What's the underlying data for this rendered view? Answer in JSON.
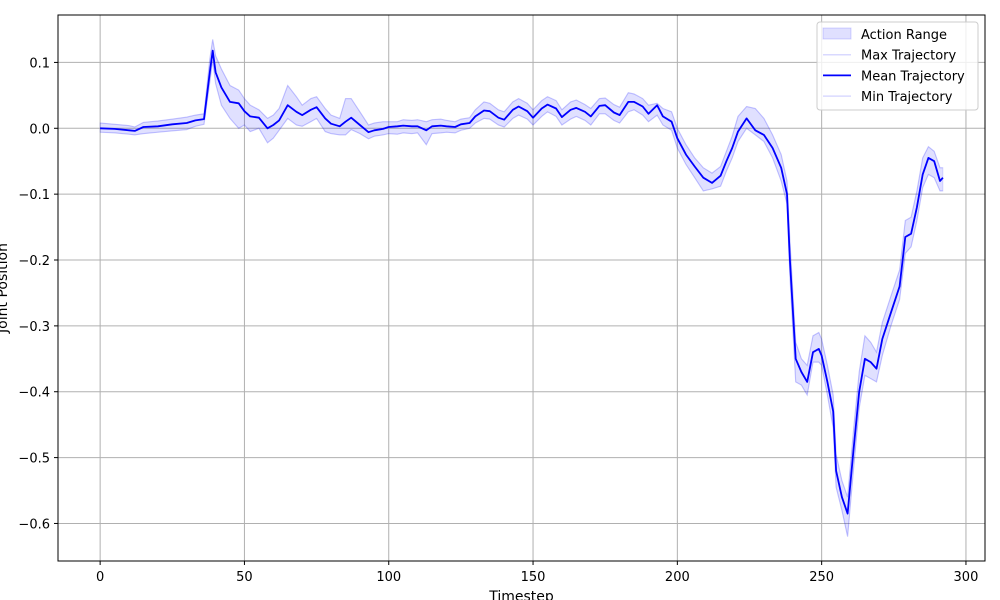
{
  "chart_data": {
    "type": "line",
    "title": "",
    "xlabel": "Timestep",
    "ylabel": "Joint Position",
    "xlim": [
      -14.6,
      306.6
    ],
    "ylim": [
      -0.657,
      0.172
    ],
    "xticks": [
      0,
      50,
      100,
      150,
      200,
      250,
      300
    ],
    "yticks": [
      0.1,
      0.0,
      -0.1,
      -0.2,
      -0.3,
      -0.4,
      -0.5,
      -0.6
    ],
    "xtick_labels": [
      "0",
      "50",
      "100",
      "150",
      "200",
      "250",
      "300"
    ],
    "ytick_labels": [
      "0.1",
      "0.0",
      "−0.1",
      "−0.2",
      "−0.3",
      "−0.4",
      "−0.5",
      "−0.6"
    ],
    "grid": true,
    "legend_position": "top-right",
    "colors": {
      "mean": "#0000ff",
      "band": "#0000ff",
      "max_min": "#9999ff"
    },
    "x": [
      0,
      5,
      10,
      12,
      15,
      20,
      25,
      30,
      33,
      36,
      38,
      39,
      40,
      42,
      45,
      48,
      50,
      52,
      55,
      58,
      60,
      62,
      65,
      68,
      70,
      73,
      75,
      78,
      80,
      83,
      85,
      87,
      90,
      93,
      95,
      98,
      100,
      103,
      105,
      108,
      110,
      113,
      115,
      118,
      120,
      123,
      125,
      128,
      130,
      133,
      135,
      138,
      140,
      143,
      145,
      148,
      150,
      153,
      155,
      158,
      160,
      163,
      165,
      168,
      170,
      173,
      175,
      178,
      180,
      183,
      185,
      188,
      190,
      193,
      195,
      198,
      200,
      203,
      206,
      209,
      212,
      215,
      217,
      219,
      221,
      224,
      227,
      230,
      233,
      236,
      238,
      239,
      241,
      243,
      245,
      247,
      249,
      250,
      252,
      254,
      255,
      257,
      259,
      261,
      263,
      265,
      267,
      269,
      271,
      274,
      277,
      279,
      281,
      283,
      285,
      287,
      289,
      291,
      292
    ],
    "series": [
      {
        "name": "Mean Trajectory",
        "values": [
          0.0,
          -0.001,
          -0.003,
          -0.004,
          0.002,
          0.003,
          0.006,
          0.008,
          0.012,
          0.014,
          0.085,
          0.118,
          0.085,
          0.062,
          0.04,
          0.038,
          0.026,
          0.018,
          0.016,
          0.0,
          0.005,
          0.012,
          0.035,
          0.025,
          0.02,
          0.028,
          0.032,
          0.015,
          0.007,
          0.003,
          0.01,
          0.016,
          0.005,
          -0.006,
          -0.003,
          -0.001,
          0.002,
          0.003,
          0.004,
          0.003,
          0.003,
          -0.003,
          0.003,
          0.004,
          0.003,
          0.002,
          0.006,
          0.008,
          0.018,
          0.027,
          0.026,
          0.016,
          0.013,
          0.028,
          0.033,
          0.026,
          0.016,
          0.03,
          0.036,
          0.03,
          0.017,
          0.028,
          0.031,
          0.025,
          0.018,
          0.034,
          0.035,
          0.024,
          0.02,
          0.04,
          0.04,
          0.033,
          0.022,
          0.035,
          0.018,
          0.01,
          -0.015,
          -0.04,
          -0.058,
          -0.075,
          -0.083,
          -0.072,
          -0.05,
          -0.03,
          -0.005,
          0.015,
          -0.003,
          -0.01,
          -0.03,
          -0.06,
          -0.1,
          -0.2,
          -0.35,
          -0.37,
          -0.385,
          -0.34,
          -0.335,
          -0.345,
          -0.385,
          -0.43,
          -0.52,
          -0.56,
          -0.585,
          -0.49,
          -0.4,
          -0.35,
          -0.355,
          -0.365,
          -0.32,
          -0.28,
          -0.24,
          -0.165,
          -0.16,
          -0.12,
          -0.07,
          -0.045,
          -0.05,
          -0.08,
          -0.075
        ]
      },
      {
        "name": "Max Trajectory",
        "values": [
          0.008,
          0.006,
          0.004,
          0.002,
          0.009,
          0.011,
          0.014,
          0.017,
          0.02,
          0.022,
          0.105,
          0.135,
          0.11,
          0.09,
          0.065,
          0.058,
          0.045,
          0.035,
          0.028,
          0.015,
          0.02,
          0.03,
          0.065,
          0.048,
          0.035,
          0.045,
          0.048,
          0.03,
          0.02,
          0.015,
          0.045,
          0.045,
          0.025,
          0.005,
          0.008,
          0.01,
          0.01,
          0.01,
          0.013,
          0.012,
          0.013,
          0.01,
          0.013,
          0.014,
          0.012,
          0.01,
          0.014,
          0.016,
          0.028,
          0.04,
          0.038,
          0.028,
          0.025,
          0.04,
          0.045,
          0.038,
          0.028,
          0.042,
          0.048,
          0.042,
          0.028,
          0.04,
          0.043,
          0.036,
          0.03,
          0.045,
          0.046,
          0.036,
          0.032,
          0.054,
          0.052,
          0.045,
          0.035,
          0.038,
          0.03,
          0.025,
          0.0,
          -0.025,
          -0.045,
          -0.06,
          -0.068,
          -0.058,
          -0.035,
          -0.012,
          0.018,
          0.033,
          0.03,
          0.015,
          -0.01,
          -0.04,
          -0.08,
          -0.17,
          -0.325,
          -0.35,
          -0.36,
          -0.315,
          -0.31,
          -0.32,
          -0.36,
          -0.405,
          -0.495,
          -0.535,
          -0.56,
          -0.46,
          -0.37,
          -0.315,
          -0.325,
          -0.34,
          -0.295,
          -0.255,
          -0.215,
          -0.14,
          -0.135,
          -0.095,
          -0.045,
          -0.028,
          -0.035,
          -0.06,
          -0.06
        ]
      },
      {
        "name": "Min Trajectory",
        "values": [
          -0.006,
          -0.007,
          -0.009,
          -0.01,
          -0.008,
          -0.006,
          -0.004,
          -0.002,
          0.003,
          0.006,
          0.07,
          0.103,
          0.068,
          0.035,
          0.015,
          0.0,
          0.005,
          -0.005,
          0.0,
          -0.022,
          -0.015,
          -0.003,
          0.015,
          0.005,
          0.003,
          0.01,
          0.015,
          -0.005,
          -0.008,
          -0.01,
          -0.01,
          -0.002,
          -0.008,
          -0.016,
          -0.012,
          -0.01,
          -0.008,
          -0.009,
          -0.007,
          -0.008,
          -0.007,
          -0.025,
          -0.008,
          -0.007,
          -0.006,
          -0.007,
          -0.003,
          0.0,
          0.008,
          0.015,
          0.014,
          0.005,
          0.002,
          0.015,
          0.02,
          0.014,
          0.005,
          0.018,
          0.025,
          0.018,
          0.005,
          0.014,
          0.018,
          0.012,
          0.005,
          0.022,
          0.022,
          0.012,
          0.008,
          0.025,
          0.028,
          0.02,
          0.01,
          0.02,
          0.005,
          -0.003,
          -0.03,
          -0.055,
          -0.075,
          -0.095,
          -0.092,
          -0.088,
          -0.065,
          -0.045,
          -0.02,
          0.0,
          -0.01,
          -0.02,
          -0.045,
          -0.08,
          -0.115,
          -0.225,
          -0.385,
          -0.39,
          -0.405,
          -0.355,
          -0.355,
          -0.36,
          -0.405,
          -0.455,
          -0.545,
          -0.58,
          -0.62,
          -0.52,
          -0.425,
          -0.375,
          -0.38,
          -0.385,
          -0.345,
          -0.3,
          -0.26,
          -0.19,
          -0.18,
          -0.14,
          -0.09,
          -0.07,
          -0.075,
          -0.095,
          -0.095
        ]
      }
    ],
    "legend": [
      {
        "label": "Action Range",
        "kind": "band"
      },
      {
        "label": "Max Trajectory",
        "kind": "faint-line"
      },
      {
        "label": "Mean Trajectory",
        "kind": "line"
      },
      {
        "label": "Min Trajectory",
        "kind": "faint-line"
      }
    ]
  }
}
